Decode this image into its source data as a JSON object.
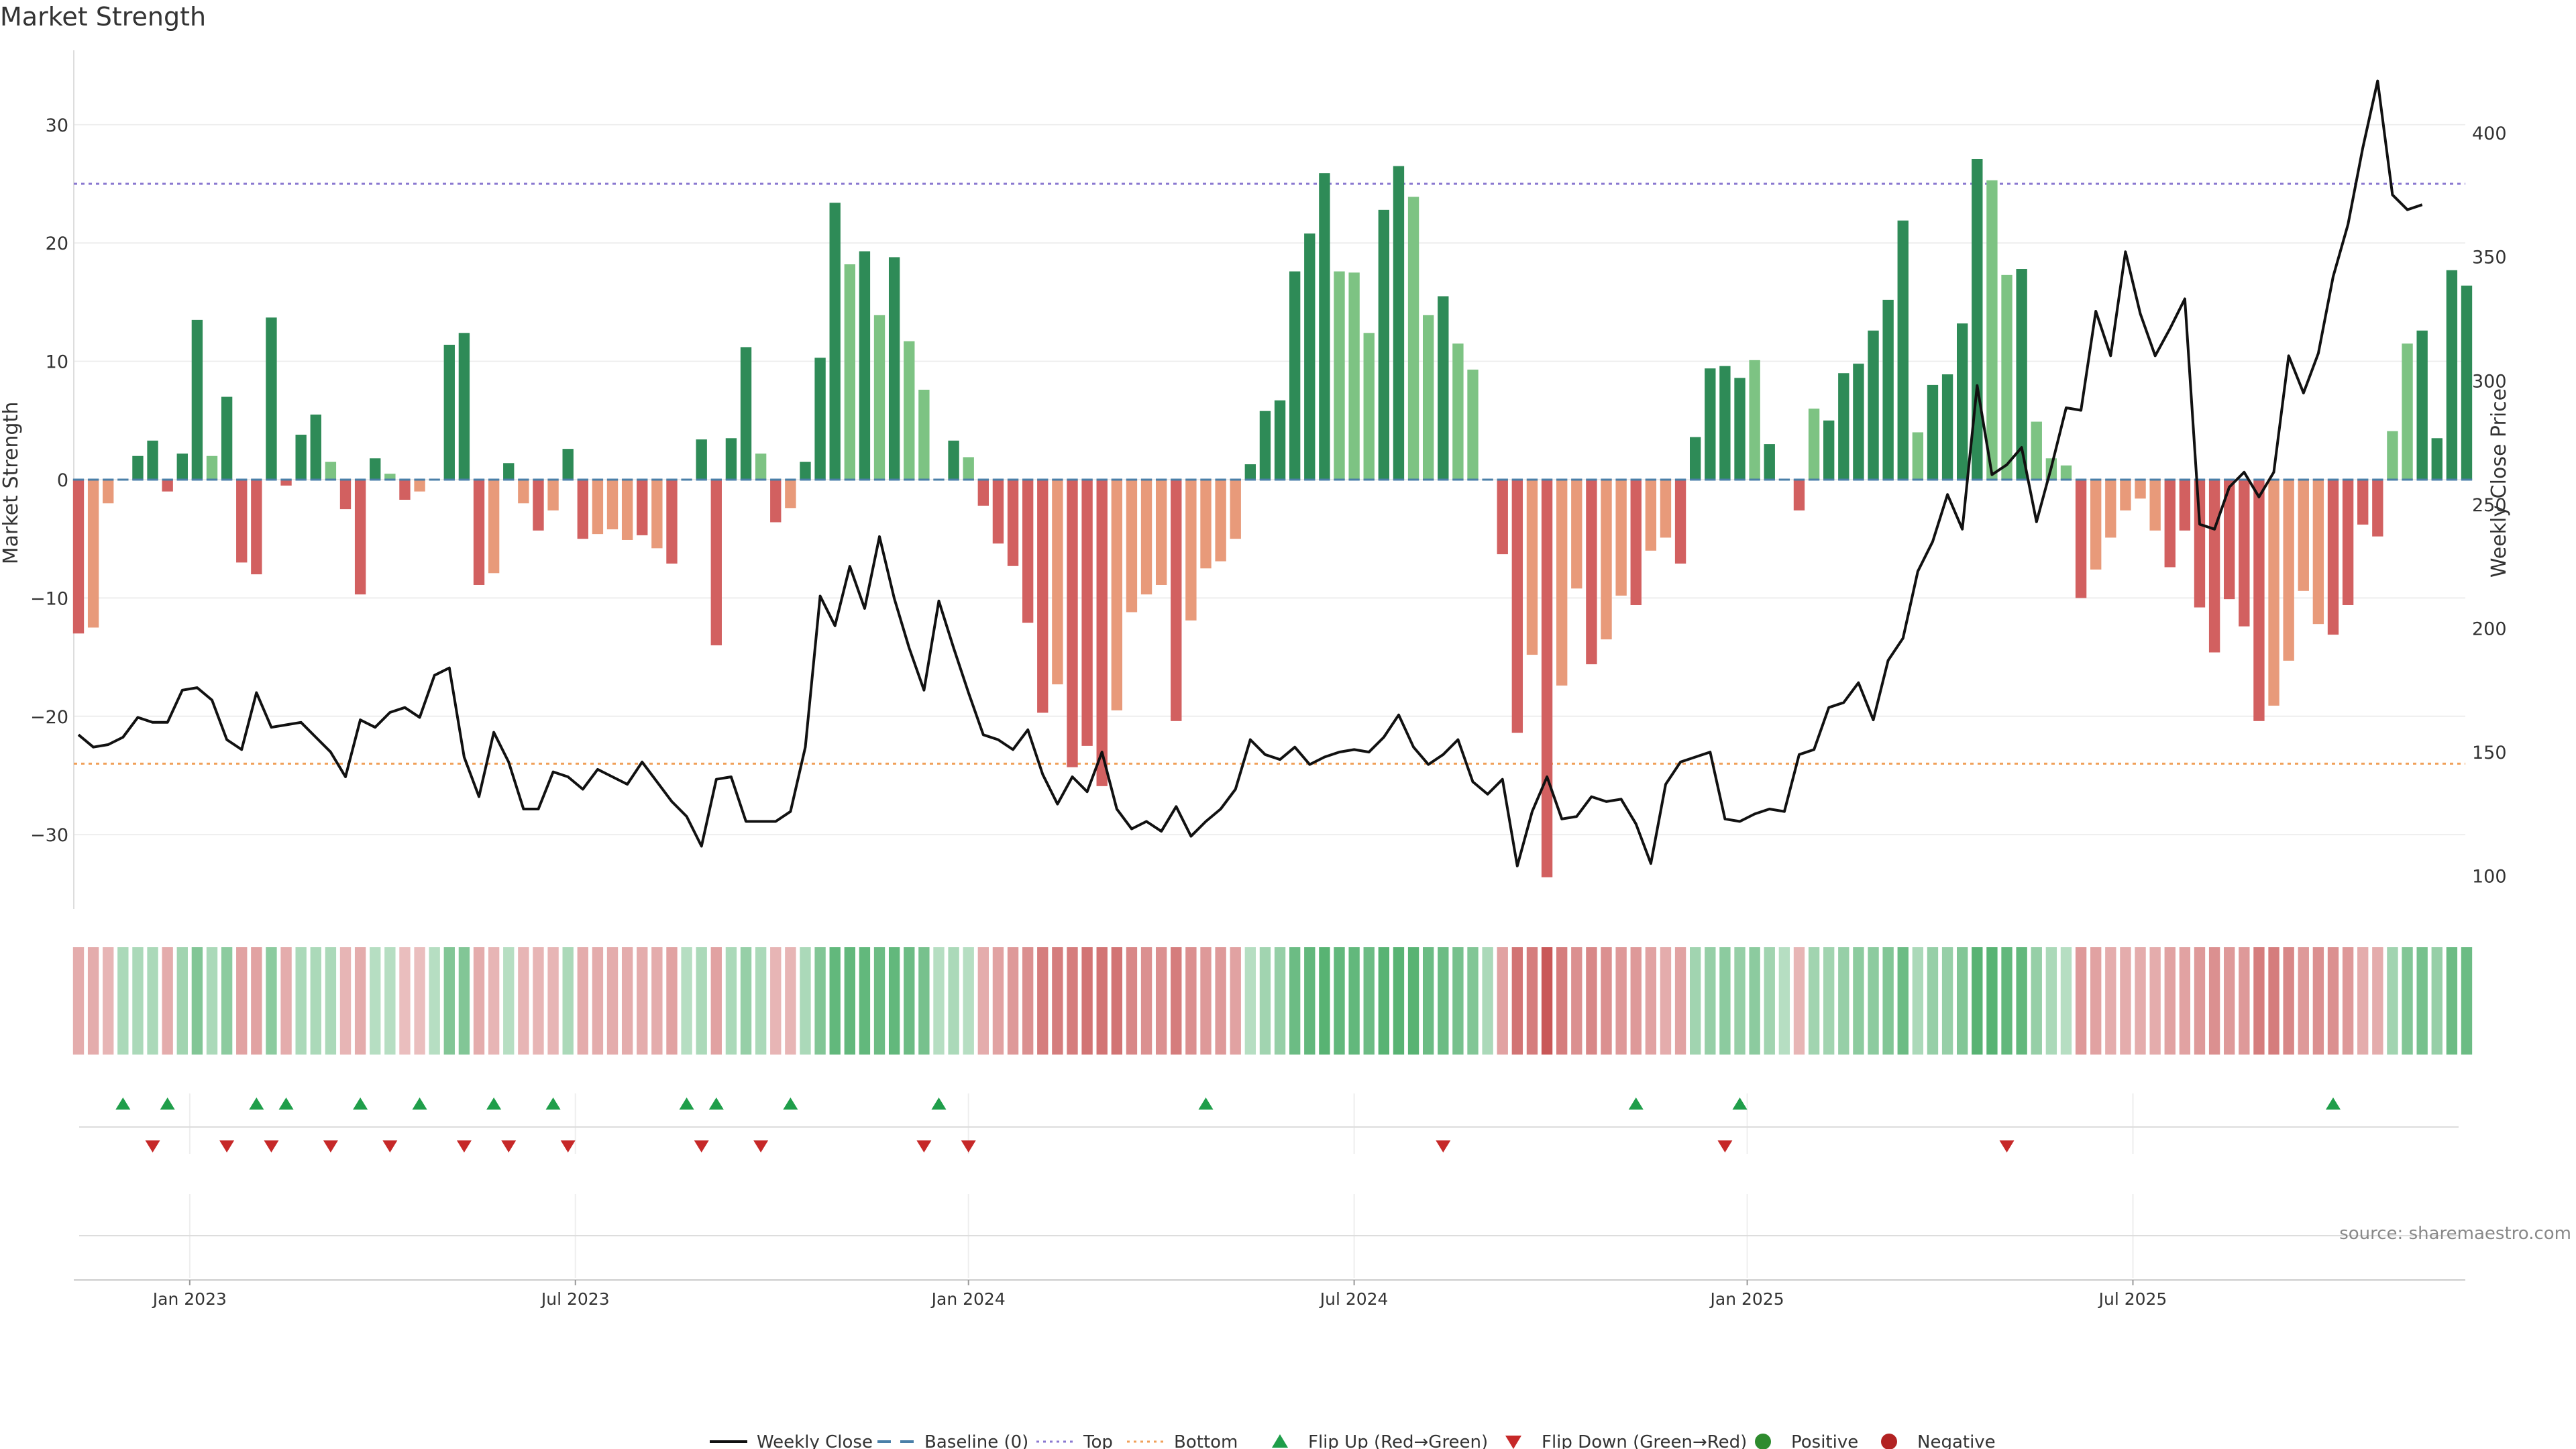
{
  "chart_data": {
    "type": "bar",
    "title": "Market Strength",
    "ylabel": "Market Strength",
    "y2label": "Weekly Close Price",
    "ylim": [
      -36,
      36
    ],
    "y2lim": [
      88,
      432
    ],
    "yticks": [
      -30,
      -20,
      -10,
      0,
      10,
      20,
      30
    ],
    "y2ticks": [
      100,
      150,
      200,
      250,
      300,
      350,
      400
    ],
    "top_line": 25,
    "bottom_line": -24,
    "x_labels": [
      {
        "label": "Jan 2023",
        "week": 7.5
      },
      {
        "label": "Jul 2023",
        "week": 33.5
      },
      {
        "label": "Jan 2024",
        "week": 60
      },
      {
        "label": "Jul 2024",
        "week": 86
      },
      {
        "label": "Jan 2025",
        "week": 112.5
      },
      {
        "label": "Jul 2025",
        "week": 138.5
      }
    ],
    "strength": [
      -13,
      -12.5,
      -2,
      0,
      2,
      3.3,
      -1,
      2.2,
      13.5,
      2,
      7,
      -7,
      -8,
      13.7,
      -0.5,
      3.8,
      5.5,
      1.5,
      -2.5,
      -9.7,
      1.8,
      0.5,
      -1.7,
      -1,
      0,
      11.4,
      12.4,
      -8.9,
      -7.9,
      1.4,
      -2,
      -4.3,
      -2.6,
      2.6,
      -5,
      -4.6,
      -4.2,
      -5.1,
      -4.7,
      -5.8,
      -7.1,
      0,
      3.4,
      -14,
      3.5,
      11.2,
      2.2,
      -3.6,
      -2.4,
      1.5,
      10.3,
      23.4,
      18.2,
      19.3,
      13.9,
      18.8,
      11.7,
      7.6,
      0,
      3.3,
      1.9,
      -2.2,
      -5.4,
      -7.3,
      -12.1,
      -19.7,
      -17.3,
      -24.3,
      -22.5,
      -25.9,
      -19.5,
      -11.2,
      -9.7,
      -8.9,
      -20.4,
      -11.9,
      -7.5,
      -6.9,
      -5,
      1.3,
      5.8,
      6.7,
      17.6,
      20.8,
      25.9,
      17.6,
      17.5,
      12.4,
      22.8,
      26.5,
      23.9,
      13.9,
      15.5,
      11.5,
      9.3,
      0,
      -6.3,
      -21.4,
      -14.8,
      -33.6,
      -17.4,
      -9.2,
      -15.6,
      -13.5,
      -9.8,
      -10.6,
      -6,
      -4.9,
      -7.1,
      3.6,
      9.4,
      9.6,
      8.6,
      10.1,
      3,
      0,
      -2.6,
      6,
      5,
      9,
      9.8,
      12.6,
      15.2,
      21.9,
      4,
      8,
      8.9,
      13.2,
      27.1,
      25.3,
      17.3,
      17.8,
      4.9,
      1.8,
      1.2,
      -10,
      -7.6,
      -4.9,
      -2.6,
      -1.6,
      -4.3,
      -7.4,
      -4.3,
      -10.8,
      -14.6,
      -10.1,
      -12.4,
      -20.4,
      -19.1,
      -15.3,
      -9.4,
      -12.2,
      -13.1,
      -10.6,
      -3.8,
      -4.8,
      4.1,
      11.5,
      12.6,
      3.5,
      17.7,
      16.4
    ],
    "strength_shade": [
      "d",
      "l",
      "l",
      "d",
      "d",
      "d",
      "d",
      "d",
      "d",
      "l",
      "d",
      "d",
      "d",
      "d",
      "d",
      "d",
      "d",
      "l",
      "d",
      "d",
      "d",
      "l",
      "d",
      "l",
      "d",
      "d",
      "d",
      "d",
      "l",
      "d",
      "l",
      "d",
      "l",
      "d",
      "d",
      "l",
      "l",
      "l",
      "d",
      "l",
      "d",
      "d",
      "d",
      "d",
      "d",
      "d",
      "l",
      "d",
      "l",
      "d",
      "d",
      "d",
      "l",
      "d",
      "l",
      "d",
      "l",
      "l",
      "d",
      "d",
      "l",
      "d",
      "d",
      "d",
      "d",
      "d",
      "l",
      "d",
      "d",
      "d",
      "l",
      "l",
      "l",
      "l",
      "d",
      "l",
      "l",
      "l",
      "l",
      "d",
      "d",
      "d",
      "d",
      "d",
      "d",
      "l",
      "l",
      "l",
      "d",
      "d",
      "l",
      "l",
      "d",
      "l",
      "l",
      "d",
      "d",
      "d",
      "l",
      "d",
      "l",
      "l",
      "d",
      "l",
      "l",
      "d",
      "l",
      "l",
      "d",
      "d",
      "d",
      "d",
      "d",
      "l",
      "d",
      "d",
      "d",
      "l",
      "d",
      "d",
      "d",
      "d",
      "d",
      "d",
      "l",
      "d",
      "d",
      "d",
      "d",
      "l",
      "l",
      "d",
      "l",
      "l",
      "l",
      "d",
      "l",
      "l",
      "l",
      "l",
      "l",
      "d",
      "d",
      "d",
      "d",
      "d",
      "d",
      "d",
      "l",
      "l",
      "l",
      "l",
      "d",
      "d",
      "d",
      "d",
      "l",
      "l",
      "d",
      "d",
      "d",
      "d",
      "l",
      "d",
      "l"
    ],
    "heat_intensity": [
      0.45,
      0.45,
      0.4,
      0.4,
      0.4,
      0.4,
      0.45,
      0.45,
      0.6,
      0.4,
      0.55,
      0.5,
      0.5,
      0.55,
      0.45,
      0.4,
      0.4,
      0.4,
      0.4,
      0.45,
      0.35,
      0.35,
      0.35,
      0.35,
      0.35,
      0.6,
      0.6,
      0.45,
      0.4,
      0.35,
      0.4,
      0.4,
      0.4,
      0.4,
      0.45,
      0.45,
      0.45,
      0.45,
      0.45,
      0.45,
      0.5,
      0.35,
      0.4,
      0.5,
      0.4,
      0.5,
      0.4,
      0.4,
      0.4,
      0.4,
      0.6,
      0.75,
      0.75,
      0.75,
      0.7,
      0.75,
      0.7,
      0.65,
      0.35,
      0.4,
      0.35,
      0.45,
      0.5,
      0.55,
      0.6,
      0.7,
      0.7,
      0.7,
      0.75,
      0.75,
      0.75,
      0.65,
      0.6,
      0.6,
      0.7,
      0.6,
      0.55,
      0.55,
      0.5,
      0.35,
      0.45,
      0.5,
      0.7,
      0.75,
      0.8,
      0.75,
      0.75,
      0.7,
      0.8,
      0.8,
      0.8,
      0.7,
      0.7,
      0.65,
      0.6,
      0.4,
      0.5,
      0.75,
      0.7,
      0.9,
      0.7,
      0.6,
      0.65,
      0.6,
      0.55,
      0.55,
      0.5,
      0.45,
      0.5,
      0.45,
      0.5,
      0.55,
      0.5,
      0.55,
      0.45,
      0.35,
      0.4,
      0.45,
      0.45,
      0.5,
      0.55,
      0.55,
      0.6,
      0.7,
      0.4,
      0.5,
      0.5,
      0.6,
      0.8,
      0.8,
      0.75,
      0.75,
      0.5,
      0.4,
      0.35,
      0.55,
      0.5,
      0.45,
      0.45,
      0.45,
      0.45,
      0.5,
      0.5,
      0.55,
      0.6,
      0.55,
      0.55,
      0.7,
      0.7,
      0.65,
      0.55,
      0.6,
      0.6,
      0.55,
      0.45,
      0.45,
      0.45,
      0.6,
      0.65,
      0.5,
      0.7,
      0.7
    ],
    "close": [
      157,
      152,
      153,
      156,
      164,
      162,
      162,
      175,
      176,
      171,
      155,
      151,
      174,
      160,
      161,
      162,
      156,
      150,
      140,
      163,
      160,
      166,
      168,
      164,
      181,
      184,
      148,
      132,
      158,
      146,
      127,
      127,
      142,
      140,
      135,
      143,
      140,
      137,
      146,
      138,
      130,
      124,
      112,
      139,
      140,
      122,
      122,
      122,
      126,
      152,
      213,
      201,
      225,
      208,
      237,
      212,
      192,
      175,
      211,
      192,
      174,
      157,
      155,
      151,
      159,
      141,
      129,
      140,
      134,
      150,
      127,
      119,
      122,
      118,
      128,
      116,
      122,
      127,
      135,
      155,
      149,
      147,
      152,
      145,
      148,
      150,
      151,
      150,
      156,
      165,
      152,
      145,
      149,
      155,
      138,
      133,
      139,
      104,
      126,
      140,
      123,
      124,
      132,
      130,
      131,
      121,
      105,
      137,
      146,
      148,
      150,
      123,
      122,
      125,
      127,
      126,
      149,
      151,
      168,
      170,
      178,
      163,
      187,
      196,
      223,
      235,
      254,
      240,
      298,
      262,
      266,
      273,
      243,
      265,
      289,
      288,
      328,
      310,
      352,
      327,
      310,
      321,
      333,
      242,
      240,
      257,
      263,
      253,
      263,
      310,
      295,
      311,
      342,
      363,
      394,
      421,
      375,
      369,
      371
    ],
    "flip_up_weeks": [
      3,
      6,
      12,
      14,
      19,
      23,
      28,
      32,
      41,
      43,
      48,
      58,
      76,
      105,
      112,
      152
    ],
    "flip_down_weeks": [
      5,
      10,
      13,
      17,
      21,
      26,
      29,
      33,
      42,
      46,
      57,
      60,
      92,
      111,
      130
    ],
    "legend": [
      "Weekly Close",
      "Baseline (0)",
      "Top",
      "Bottom",
      "Flip Up (Red→Green)",
      "Flip Down (Green→Red)",
      "Positive",
      "Negative"
    ]
  },
  "source": "source: sharemaestro.com",
  "colors": {
    "pos_dark": "#2e8b57",
    "pos_light": "#7dc383",
    "neg_dark": "#d26060",
    "neg_light": "#e89a7a",
    "line": "#111111",
    "top": "#8a78d0",
    "bottom": "#f0a05a",
    "flip_up": "#1f9e4a",
    "flip_down": "#c62828",
    "positive_dot": "#2e8b2e",
    "negative_dot": "#b22222"
  }
}
